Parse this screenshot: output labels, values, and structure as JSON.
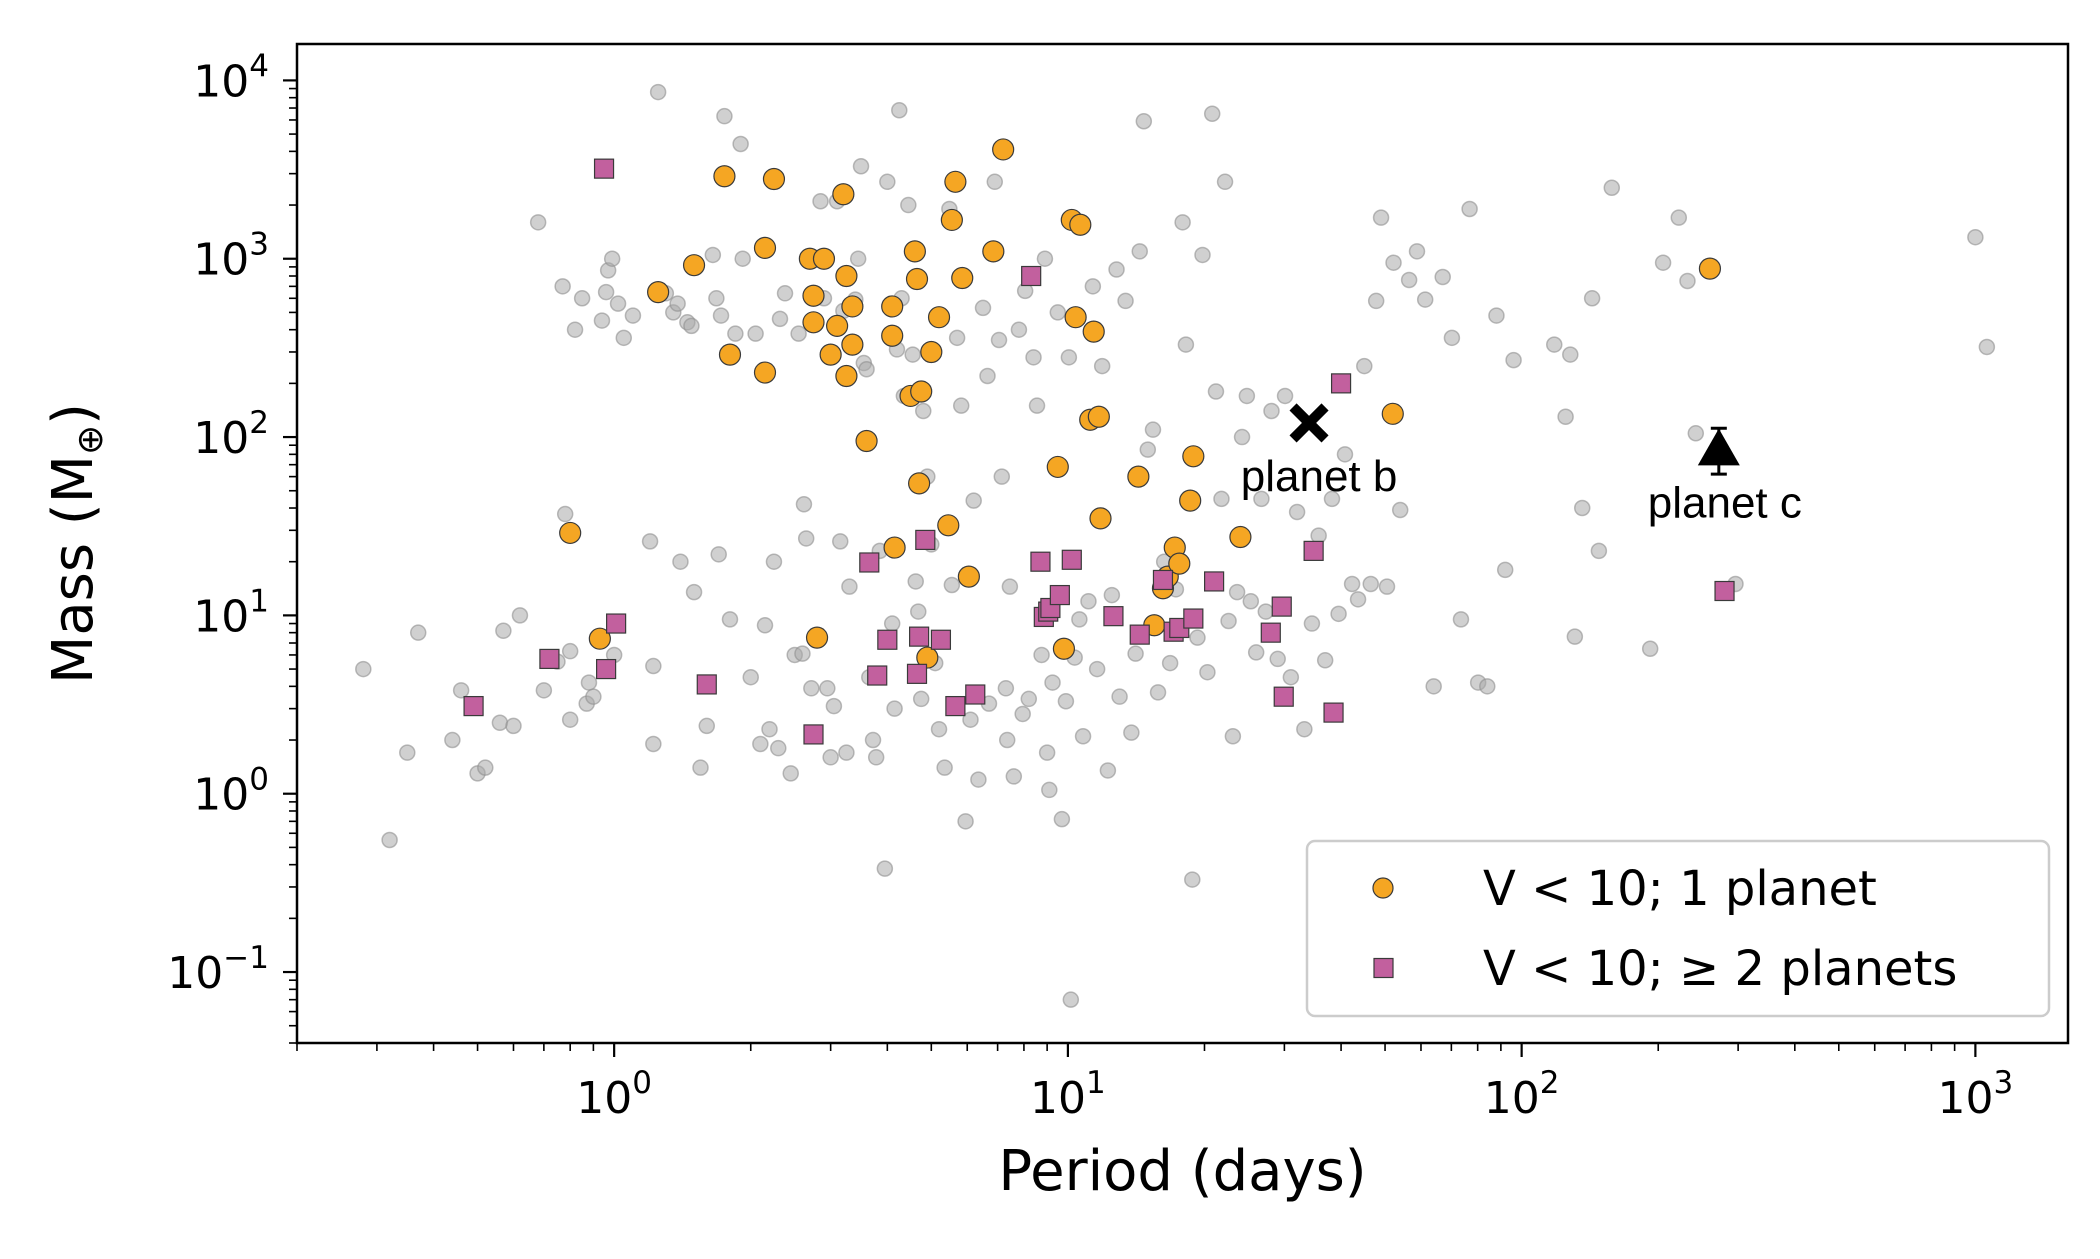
{
  "chart_data": {
    "type": "scatter",
    "xlabel": "Period (days)",
    "ylabel": "Mass (M",
    "ylabel_symbol": "⊕",
    "ylabel_close": ")",
    "xscale": "log",
    "yscale": "log",
    "xlim": [
      0.2,
      1600
    ],
    "ylim": [
      0.04,
      16000
    ],
    "x_ticks": [
      {
        "value": 1,
        "base": "10",
        "exp": "0"
      },
      {
        "value": 10,
        "base": "10",
        "exp": "1"
      },
      {
        "value": 100,
        "base": "10",
        "exp": "2"
      },
      {
        "value": 1000,
        "base": "10",
        "exp": "3"
      }
    ],
    "y_ticks": [
      {
        "value": 0.1,
        "base": "10",
        "exp": "−1"
      },
      {
        "value": 1,
        "base": "10",
        "exp": "0"
      },
      {
        "value": 10,
        "base": "10",
        "exp": "1"
      },
      {
        "value": 100,
        "base": "10",
        "exp": "2"
      },
      {
        "value": 1000,
        "base": "10",
        "exp": "3"
      },
      {
        "value": 10000,
        "base": "10",
        "exp": "4"
      }
    ],
    "colors": {
      "background_points": "#a9a9a9",
      "single_planet": "#f5a623",
      "multi_planet": "#c2609e",
      "marker_edge": "#3a3a3a",
      "highlight": "#000000"
    },
    "legend": {
      "placement": "lower-right",
      "entries": [
        {
          "label": "V < 10; 1 planet",
          "marker": "circle",
          "series": "single"
        },
        {
          "label": "V < 10; ≥ 2 planets",
          "marker": "square",
          "series": "multi"
        }
      ]
    },
    "series": [
      {
        "name": "V < 10; 1 planet",
        "marker": "circle",
        "points": [
          [
            0.8,
            29
          ],
          [
            0.93,
            7.4
          ],
          [
            1.25,
            650
          ],
          [
            1.5,
            920
          ],
          [
            1.75,
            2900
          ],
          [
            1.8,
            290
          ],
          [
            2.15,
            1150
          ],
          [
            2.15,
            230
          ],
          [
            2.25,
            2800
          ],
          [
            2.7,
            1000
          ],
          [
            2.75,
            620
          ],
          [
            2.75,
            440
          ],
          [
            2.8,
            7.5
          ],
          [
            2.9,
            1000
          ],
          [
            3.0,
            290
          ],
          [
            3.1,
            420
          ],
          [
            3.2,
            2300
          ],
          [
            3.25,
            800
          ],
          [
            3.25,
            220
          ],
          [
            3.35,
            540
          ],
          [
            3.35,
            330
          ],
          [
            3.6,
            95
          ],
          [
            4.1,
            540
          ],
          [
            4.1,
            370
          ],
          [
            4.15,
            24
          ],
          [
            4.5,
            170
          ],
          [
            4.6,
            1100
          ],
          [
            4.65,
            770
          ],
          [
            4.7,
            55
          ],
          [
            4.75,
            180
          ],
          [
            4.9,
            5.8
          ],
          [
            5.0,
            300
          ],
          [
            5.2,
            470
          ],
          [
            5.45,
            32
          ],
          [
            5.55,
            1650
          ],
          [
            5.65,
            2700
          ],
          [
            5.85,
            780
          ],
          [
            6.05,
            16.5
          ],
          [
            6.85,
            1100
          ],
          [
            7.2,
            4100
          ],
          [
            9.5,
            68
          ],
          [
            9.8,
            6.5
          ],
          [
            10.2,
            1650
          ],
          [
            10.4,
            470
          ],
          [
            10.65,
            1550
          ],
          [
            11.2,
            125
          ],
          [
            11.4,
            390
          ],
          [
            11.7,
            130
          ],
          [
            11.8,
            35
          ],
          [
            14.3,
            60
          ],
          [
            15.5,
            8.8
          ],
          [
            16.2,
            14.2
          ],
          [
            16.6,
            16.5
          ],
          [
            17.2,
            24
          ],
          [
            17.6,
            19.5
          ],
          [
            18.6,
            44
          ],
          [
            18.9,
            78
          ],
          [
            24.0,
            27.5
          ],
          [
            52.0,
            135
          ],
          [
            260.0,
            880
          ]
        ]
      },
      {
        "name": "V < 10; ≥ 2 planets",
        "marker": "square",
        "points": [
          [
            0.49,
            3.1
          ],
          [
            0.72,
            5.7
          ],
          [
            0.96,
            5.0
          ],
          [
            1.01,
            9.0
          ],
          [
            0.95,
            3200
          ],
          [
            1.6,
            4.1
          ],
          [
            2.75,
            2.15
          ],
          [
            3.65,
            19.8
          ],
          [
            3.8,
            4.6
          ],
          [
            4.0,
            7.3
          ],
          [
            4.65,
            4.7
          ],
          [
            4.7,
            7.6
          ],
          [
            4.85,
            26.5
          ],
          [
            5.25,
            7.3
          ],
          [
            5.65,
            3.1
          ],
          [
            6.25,
            3.6
          ],
          [
            8.3,
            800
          ],
          [
            8.7,
            20
          ],
          [
            8.85,
            9.8
          ],
          [
            9.05,
            10.5
          ],
          [
            9.15,
            11.0
          ],
          [
            9.6,
            13.0
          ],
          [
            10.2,
            20.5
          ],
          [
            12.6,
            9.9
          ],
          [
            14.4,
            7.8
          ],
          [
            16.2,
            15.8
          ],
          [
            17.1,
            8.1
          ],
          [
            17.6,
            8.5
          ],
          [
            18.9,
            9.6
          ],
          [
            21.0,
            15.5
          ],
          [
            28.0,
            8.0
          ],
          [
            29.6,
            11.2
          ],
          [
            29.9,
            3.5
          ],
          [
            34.8,
            23
          ],
          [
            38.5,
            2.85
          ],
          [
            40.0,
            200
          ],
          [
            280.0,
            13.7
          ]
        ]
      }
    ],
    "background_points": [
      [
        0.28,
        5.0
      ],
      [
        0.32,
        0.55
      ],
      [
        0.35,
        1.7
      ],
      [
        0.37,
        8.0
      ],
      [
        0.44,
        2.0
      ],
      [
        0.46,
        3.8
      ],
      [
        0.5,
        1.3
      ],
      [
        0.52,
        1.4
      ],
      [
        0.56,
        2.5
      ],
      [
        0.57,
        8.2
      ],
      [
        0.6,
        2.4
      ],
      [
        0.62,
        10.0
      ],
      [
        0.68,
        1600
      ],
      [
        0.7,
        3.8
      ],
      [
        0.75,
        5.5
      ],
      [
        0.77,
        700
      ],
      [
        0.78,
        37.0
      ],
      [
        0.8,
        6.3
      ],
      [
        0.8,
        2.6
      ],
      [
        0.82,
        400
      ],
      [
        0.85,
        600
      ],
      [
        0.87,
        3.2
      ],
      [
        0.88,
        4.2
      ],
      [
        0.9,
        3.5
      ],
      [
        0.92,
        7.5
      ],
      [
        0.94,
        450
      ],
      [
        0.96,
        650
      ],
      [
        0.97,
        860
      ],
      [
        0.99,
        1000
      ],
      [
        1.0,
        6.0
      ],
      [
        1.02,
        560
      ],
      [
        1.05,
        360
      ],
      [
        1.1,
        480
      ],
      [
        1.2,
        26
      ],
      [
        1.22,
        1.9
      ],
      [
        1.22,
        5.2
      ],
      [
        1.25,
        8600
      ],
      [
        1.3,
        640
      ],
      [
        1.35,
        500
      ],
      [
        1.38,
        560
      ],
      [
        1.4,
        20
      ],
      [
        1.45,
        440
      ],
      [
        1.48,
        420
      ],
      [
        1.5,
        13.5
      ],
      [
        1.55,
        1.4
      ],
      [
        1.6,
        2.4
      ],
      [
        1.65,
        1050
      ],
      [
        1.68,
        600
      ],
      [
        1.7,
        22
      ],
      [
        1.72,
        480
      ],
      [
        1.75,
        6300
      ],
      [
        1.8,
        9.5
      ],
      [
        1.85,
        380
      ],
      [
        1.9,
        4400
      ],
      [
        1.92,
        1000
      ],
      [
        2.0,
        4.5
      ],
      [
        2.05,
        380
      ],
      [
        2.1,
        1.9
      ],
      [
        2.15,
        8.8
      ],
      [
        2.2,
        2.3
      ],
      [
        2.25,
        20
      ],
      [
        2.3,
        1.8
      ],
      [
        2.32,
        460
      ],
      [
        2.38,
        640
      ],
      [
        2.45,
        1.3
      ],
      [
        2.5,
        6.0
      ],
      [
        2.55,
        380
      ],
      [
        2.6,
        6.1
      ],
      [
        2.62,
        42
      ],
      [
        2.65,
        27
      ],
      [
        2.72,
        3.9
      ],
      [
        2.78,
        430
      ],
      [
        2.85,
        2100
      ],
      [
        2.9,
        600
      ],
      [
        2.95,
        3.9
      ],
      [
        3.0,
        1.6
      ],
      [
        3.05,
        3.1
      ],
      [
        3.1,
        2100
      ],
      [
        3.15,
        26
      ],
      [
        3.2,
        510
      ],
      [
        3.25,
        1.7
      ],
      [
        3.3,
        14.5
      ],
      [
        3.4,
        590
      ],
      [
        3.45,
        1000
      ],
      [
        3.5,
        3300
      ],
      [
        3.55,
        260
      ],
      [
        3.6,
        240
      ],
      [
        3.65,
        4.5
      ],
      [
        3.72,
        2.0
      ],
      [
        3.78,
        1.6
      ],
      [
        3.85,
        23
      ],
      [
        3.95,
        0.38
      ],
      [
        4.0,
        2700
      ],
      [
        4.1,
        9.0
      ],
      [
        4.15,
        3.0
      ],
      [
        4.2,
        310
      ],
      [
        4.25,
        6800
      ],
      [
        4.3,
        600
      ],
      [
        4.35,
        170
      ],
      [
        4.45,
        2000
      ],
      [
        4.55,
        290
      ],
      [
        4.62,
        15.5
      ],
      [
        4.68,
        10.5
      ],
      [
        4.75,
        3.4
      ],
      [
        4.8,
        140
      ],
      [
        4.9,
        60
      ],
      [
        5.0,
        25
      ],
      [
        5.1,
        5.4
      ],
      [
        5.2,
        2.3
      ],
      [
        5.35,
        1.4
      ],
      [
        5.48,
        1900
      ],
      [
        5.55,
        14.8
      ],
      [
        5.7,
        360
      ],
      [
        5.82,
        150
      ],
      [
        5.95,
        0.7
      ],
      [
        6.1,
        2.6
      ],
      [
        6.2,
        44
      ],
      [
        6.35,
        1.2
      ],
      [
        6.5,
        530
      ],
      [
        6.65,
        220
      ],
      [
        6.7,
        3.2
      ],
      [
        6.9,
        2700
      ],
      [
        7.05,
        350
      ],
      [
        7.15,
        60
      ],
      [
        7.3,
        3.9
      ],
      [
        7.35,
        2.0
      ],
      [
        7.45,
        14.5
      ],
      [
        7.6,
        1.25
      ],
      [
        7.8,
        400
      ],
      [
        7.95,
        2.8
      ],
      [
        8.05,
        660
      ],
      [
        8.2,
        3.4
      ],
      [
        8.4,
        280
      ],
      [
        8.55,
        150
      ],
      [
        8.75,
        6.0
      ],
      [
        8.9,
        1000
      ],
      [
        9.0,
        1.7
      ],
      [
        9.1,
        1.05
      ],
      [
        9.25,
        4.2
      ],
      [
        9.5,
        500
      ],
      [
        9.7,
        0.72
      ],
      [
        9.9,
        3.3
      ],
      [
        10.05,
        280
      ],
      [
        10.15,
        0.07
      ],
      [
        10.35,
        5.8
      ],
      [
        10.6,
        9.5
      ],
      [
        10.8,
        2.1
      ],
      [
        11.1,
        12.0
      ],
      [
        11.35,
        700
      ],
      [
        11.6,
        5.0
      ],
      [
        11.9,
        250
      ],
      [
        12.25,
        1.35
      ],
      [
        12.5,
        13.0
      ],
      [
        12.8,
        870
      ],
      [
        13.0,
        3.5
      ],
      [
        13.4,
        580
      ],
      [
        13.8,
        2.2
      ],
      [
        14.1,
        6.1
      ],
      [
        14.4,
        1100
      ],
      [
        14.7,
        5900
      ],
      [
        15.0,
        85
      ],
      [
        15.4,
        110
      ],
      [
        15.8,
        3.7
      ],
      [
        16.3,
        20
      ],
      [
        16.8,
        5.4
      ],
      [
        17.3,
        14
      ],
      [
        17.9,
        1600
      ],
      [
        18.2,
        330
      ],
      [
        18.8,
        0.33
      ],
      [
        19.3,
        7.5
      ],
      [
        19.8,
        1050
      ],
      [
        20.3,
        4.8
      ],
      [
        20.8,
        6500
      ],
      [
        21.2,
        180
      ],
      [
        21.8,
        45
      ],
      [
        22.2,
        2700
      ],
      [
        22.6,
        9.3
      ],
      [
        23.1,
        2.1
      ],
      [
        23.6,
        13.5
      ],
      [
        24.2,
        100
      ],
      [
        24.8,
        170
      ],
      [
        25.3,
        12.0
      ],
      [
        26.0,
        6.2
      ],
      [
        26.7,
        45
      ],
      [
        27.3,
        10.5
      ],
      [
        28.1,
        140
      ],
      [
        29.0,
        5.7
      ],
      [
        30.1,
        170
      ],
      [
        31.0,
        4.5
      ],
      [
        32.0,
        38
      ],
      [
        33.2,
        2.3
      ],
      [
        34.5,
        9.0
      ],
      [
        35.7,
        28
      ],
      [
        36.9,
        5.6
      ],
      [
        38.2,
        45
      ],
      [
        39.5,
        10.2
      ],
      [
        40.8,
        80
      ],
      [
        42.3,
        15.0
      ],
      [
        43.6,
        12.3
      ],
      [
        45.0,
        250
      ],
      [
        46.5,
        15.0
      ],
      [
        47.8,
        580
      ],
      [
        49.0,
        1700
      ],
      [
        50.5,
        14.5
      ],
      [
        52.2,
        950
      ],
      [
        54.0,
        39
      ],
      [
        56.5,
        760
      ],
      [
        58.8,
        1100
      ],
      [
        61.3,
        590
      ],
      [
        64.0,
        4.0
      ],
      [
        67.0,
        790
      ],
      [
        70.2,
        360
      ],
      [
        73.5,
        9.5
      ],
      [
        76.8,
        1900
      ],
      [
        80.2,
        4.2
      ],
      [
        84.0,
        4.0
      ],
      [
        88.0,
        480
      ],
      [
        92.0,
        18
      ],
      [
        96.0,
        270
      ],
      [
        118.0,
        330
      ],
      [
        125.0,
        130
      ],
      [
        128.0,
        290
      ],
      [
        131.0,
        7.6
      ],
      [
        136.0,
        40
      ],
      [
        143.0,
        600
      ],
      [
        148.0,
        23
      ],
      [
        158.0,
        2500
      ],
      [
        192.0,
        6.5
      ],
      [
        205.0,
        950
      ],
      [
        222.0,
        1700
      ],
      [
        232.0,
        750
      ],
      [
        242.0,
        105
      ],
      [
        296.0,
        15.0
      ],
      [
        1000.0,
        1320
      ],
      [
        1060.0,
        320
      ]
    ],
    "highlights": [
      {
        "name": "planet b",
        "label": "planet b",
        "marker": "x",
        "x": 34,
        "y": 120
      },
      {
        "name": "planet c",
        "label": "planet c",
        "marker": "triangle-up",
        "x": 272,
        "y": 85,
        "y_err_low": 62,
        "y_err_high": 112
      }
    ]
  }
}
